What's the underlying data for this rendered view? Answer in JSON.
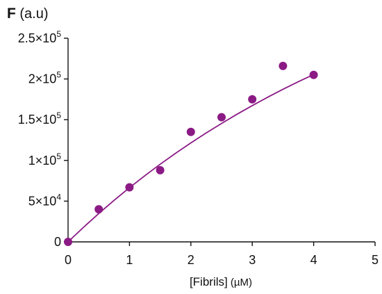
{
  "chart_data": {
    "type": "scatter",
    "title": "",
    "ylabel_bold": "F",
    "ylabel_rest": " (a.u)",
    "xlabel_main": "[Fibrils]",
    "xlabel_unit": " (µM)",
    "xlim": [
      0,
      5
    ],
    "ylim": [
      0,
      250000
    ],
    "xticks": [
      {
        "value": 0,
        "label": "0"
      },
      {
        "value": 1,
        "label": "1"
      },
      {
        "value": 2,
        "label": "2"
      },
      {
        "value": 3,
        "label": "3"
      },
      {
        "value": 4,
        "label": "4"
      },
      {
        "value": 5,
        "label": "5"
      }
    ],
    "yticks": [
      {
        "value": 0,
        "mantissa": "0",
        "exponent": ""
      },
      {
        "value": 50000,
        "mantissa": "5×10",
        "exponent": "4"
      },
      {
        "value": 100000,
        "mantissa": "1×10",
        "exponent": "5"
      },
      {
        "value": 150000,
        "mantissa": "1.5×10",
        "exponent": "5"
      },
      {
        "value": 200000,
        "mantissa": "2×10",
        "exponent": "5"
      },
      {
        "value": 250000,
        "mantissa": "2.5×10",
        "exponent": "5"
      }
    ],
    "grid": false,
    "series": [
      {
        "color": "#8b1a85",
        "points": [
          {
            "x": 0,
            "y": 0
          },
          {
            "x": 0.5,
            "y": 40000
          },
          {
            "x": 1,
            "y": 67000
          },
          {
            "x": 1.5,
            "y": 88000
          },
          {
            "x": 2,
            "y": 135000
          },
          {
            "x": 2.5,
            "y": 153000
          },
          {
            "x": 3,
            "y": 175000
          },
          {
            "x": 3.5,
            "y": 216000
          },
          {
            "x": 4,
            "y": 205000
          }
        ]
      }
    ],
    "fit_curve": {
      "color": "#8b1a85",
      "x": [
        0,
        0.25,
        0.5,
        0.75,
        1,
        1.25,
        1.5,
        1.75,
        2,
        2.25,
        2.5,
        2.75,
        3,
        3.25,
        3.5,
        3.75,
        4
      ],
      "y": [
        0,
        17800,
        34800,
        51000,
        66500,
        81200,
        95300,
        108700,
        121500,
        133700,
        145400,
        156600,
        167300,
        177500,
        187300,
        196600,
        205500
      ]
    }
  }
}
